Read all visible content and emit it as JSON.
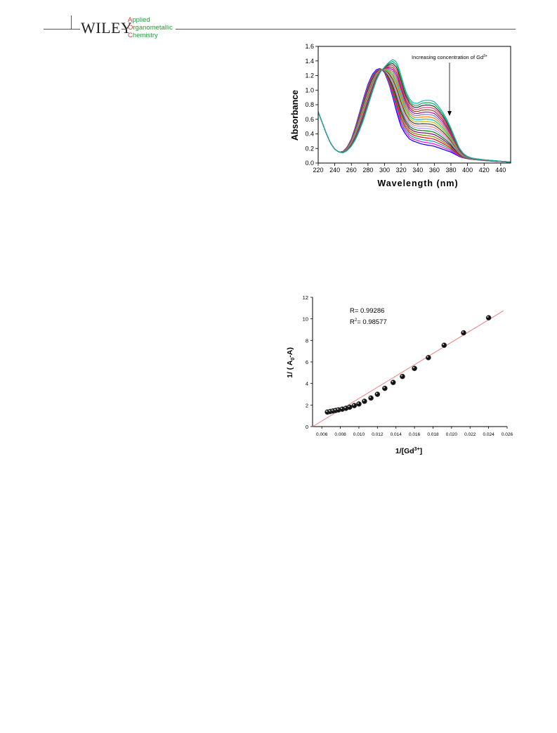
{
  "header": {
    "publisher": "WILEY",
    "journal_lines": [
      {
        "cap": "A",
        "rest": "pplied"
      },
      {
        "cap": "O",
        "rest": "rganometallic"
      },
      {
        "cap": "C",
        "rest": "hemistry"
      }
    ],
    "colors": {
      "cap": "#d93a2a",
      "text": "#2a9a3a"
    }
  },
  "chart_data": [
    {
      "type": "line",
      "xlabel": "Wavelength (nm)",
      "ylabel": "Absorbance",
      "xlim": [
        220,
        452
      ],
      "ylim": [
        0.0,
        1.6
      ],
      "x_ticks": [
        220,
        240,
        260,
        280,
        300,
        320,
        340,
        360,
        380,
        400,
        420,
        440
      ],
      "y_ticks": [
        0.0,
        0.2,
        0.4,
        0.6,
        0.8,
        1.0,
        1.2,
        1.4,
        1.6
      ],
      "y_tick_labels": [
        "0.0",
        "0.2",
        "0.4",
        "0.6",
        "0.8",
        "1.0",
        "1.2",
        "1.4",
        "1.6"
      ],
      "annotation": {
        "text": "Increasing concentration of Gd",
        "sup": "3+"
      },
      "series_count": 20,
      "series_colors": [
        "#0000ff",
        "#ff00ff",
        "#00a0a0",
        "#ff0000",
        "#808000",
        "#800080",
        "#008000",
        "#a0a0ff",
        "#ff8080",
        "#404040",
        "#c0c000",
        "#00c0c0",
        "#ff8000",
        "#8080c0",
        "#c000c0",
        "#8b4513",
        "#ff3080",
        "#303030",
        "#00b050",
        "#20b0b0"
      ],
      "base_spectrum": {
        "x": [
          220,
          225,
          230,
          235,
          240,
          245,
          250,
          255,
          260,
          265,
          270,
          275,
          280,
          285,
          290,
          295,
          300,
          305,
          310,
          315,
          320,
          325,
          330,
          335,
          340,
          345,
          350,
          355,
          360,
          365,
          370,
          375,
          380,
          385,
          390,
          395,
          400,
          405,
          410,
          420,
          430,
          440,
          452
        ],
        "y": [
          0.7,
          0.55,
          0.4,
          0.27,
          0.19,
          0.15,
          0.16,
          0.22,
          0.33,
          0.5,
          0.7,
          0.9,
          1.08,
          1.21,
          1.28,
          1.3,
          1.24,
          1.1,
          0.9,
          0.68,
          0.5,
          0.4,
          0.33,
          0.3,
          0.28,
          0.26,
          0.25,
          0.24,
          0.23,
          0.21,
          0.19,
          0.17,
          0.15,
          0.12,
          0.09,
          0.07,
          0.06,
          0.05,
          0.045,
          0.035,
          0.025,
          0.02,
          0.01
        ]
      },
      "final_spectrum": {
        "x": [
          220,
          225,
          230,
          235,
          240,
          245,
          250,
          255,
          260,
          265,
          270,
          275,
          280,
          285,
          290,
          295,
          300,
          305,
          310,
          315,
          320,
          325,
          330,
          335,
          340,
          345,
          350,
          355,
          360,
          365,
          370,
          375,
          380,
          385,
          390,
          395,
          400,
          405,
          410,
          420,
          430,
          440,
          452
        ],
        "y": [
          0.7,
          0.55,
          0.4,
          0.27,
          0.19,
          0.15,
          0.14,
          0.17,
          0.23,
          0.32,
          0.45,
          0.6,
          0.78,
          0.96,
          1.13,
          1.25,
          1.32,
          1.38,
          1.42,
          1.38,
          1.2,
          1.0,
          0.88,
          0.82,
          0.82,
          0.85,
          0.86,
          0.86,
          0.84,
          0.78,
          0.7,
          0.6,
          0.48,
          0.34,
          0.21,
          0.13,
          0.09,
          0.07,
          0.06,
          0.045,
          0.035,
          0.025,
          0.015
        ]
      }
    },
    {
      "type": "scatter",
      "xlabel": "1/[Gd",
      "xlabel_sup": "3+",
      "xlabel_end": "]",
      "ylabel": "1/ ( A",
      "ylabel_sub": "0",
      "ylabel_end": "-A)",
      "xlim": [
        0.005,
        0.026
      ],
      "ylim": [
        0,
        12
      ],
      "x_ticks": [
        0.006,
        0.008,
        0.01,
        0.012,
        0.014,
        0.016,
        0.018,
        0.02,
        0.022,
        0.024,
        0.026
      ],
      "x_tick_labels": [
        "0.006",
        "0.008",
        "0.010",
        "0.012",
        "0.014",
        "0.016",
        "0.018",
        "0.020",
        "0.022",
        "0.024",
        "0.026"
      ],
      "y_ticks": [
        0,
        2,
        4,
        6,
        8,
        10,
        12
      ],
      "annotations": [
        {
          "text": "R= 0.99286"
        },
        {
          "prefix": "R",
          "sup": "2",
          "text": "= 0.98577"
        }
      ],
      "points": {
        "x": [
          0.0066,
          0.0069,
          0.0072,
          0.0075,
          0.0078,
          0.0082,
          0.0086,
          0.009,
          0.0095,
          0.01,
          0.0106,
          0.0113,
          0.012,
          0.0128,
          0.0137,
          0.0147,
          0.016,
          0.0175,
          0.0192,
          0.0213,
          0.024
        ],
        "y": [
          1.35,
          1.4,
          1.45,
          1.5,
          1.55,
          1.62,
          1.7,
          1.8,
          1.95,
          2.1,
          2.35,
          2.65,
          3.0,
          3.55,
          4.1,
          4.65,
          5.4,
          6.4,
          7.55,
          8.7,
          10.1
        ]
      },
      "fit_line": {
        "x": [
          0.005,
          0.0256
        ],
        "y": [
          0.0,
          10.75
        ],
        "color": "#f08080"
      },
      "marker_color": "#111111"
    }
  ]
}
